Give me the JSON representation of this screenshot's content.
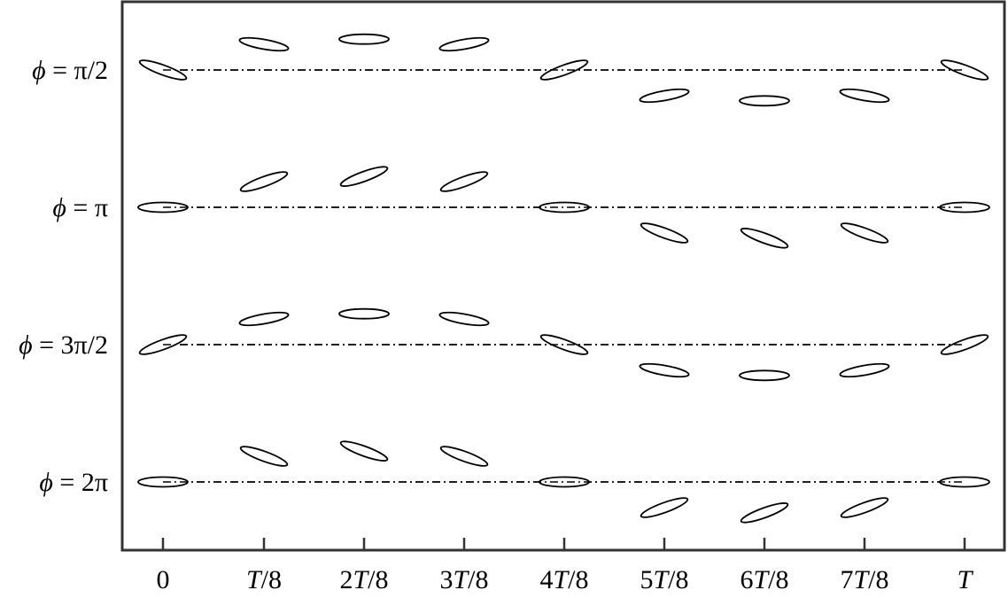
{
  "x_labels": [
    {
      "pre": "0",
      "ital": "",
      "post": ""
    },
    {
      "pre": "",
      "ital": "T",
      "post": "/8"
    },
    {
      "pre": "2",
      "ital": "T",
      "post": "/8"
    },
    {
      "pre": "3",
      "ital": "T",
      "post": "/8"
    },
    {
      "pre": "4",
      "ital": "T",
      "post": "/8"
    },
    {
      "pre": "5",
      "ital": "T",
      "post": "/8"
    },
    {
      "pre": "6",
      "ital": "T",
      "post": "/8"
    },
    {
      "pre": "7",
      "ital": "T",
      "post": "/8"
    },
    {
      "pre": "",
      "ital": "T",
      "post": ""
    }
  ],
  "rows": [
    {
      "symbol": "ϕ",
      "value": " = π/2",
      "offsets": [
        0,
        1.0,
        1.2,
        1.0,
        0,
        -1.0,
        -1.2,
        -1.0,
        0
      ],
      "angles": [
        -20,
        -10,
        0,
        10,
        20,
        10,
        0,
        -10,
        -20
      ]
    },
    {
      "symbol": "ϕ",
      "value": " = π",
      "offsets": [
        0,
        1.0,
        1.2,
        1.0,
        0,
        -1.0,
        -1.2,
        -1.0,
        0
      ],
      "angles": [
        0,
        20,
        20,
        20,
        0,
        -20,
        -20,
        -20,
        0
      ]
    },
    {
      "symbol": "ϕ",
      "value": " = 3π/2",
      "offsets": [
        0,
        1.0,
        1.2,
        1.0,
        0,
        -1.0,
        -1.2,
        -1.0,
        0
      ],
      "angles": [
        20,
        10,
        0,
        -10,
        -20,
        -10,
        0,
        10,
        20
      ]
    },
    {
      "symbol": "ϕ",
      "value": " = 2π",
      "offsets": [
        0,
        1.0,
        1.2,
        1.0,
        0,
        -1.0,
        -1.2,
        -1.0,
        0
      ],
      "angles": [
        0,
        -20,
        -20,
        -20,
        0,
        20,
        20,
        20,
        0
      ]
    }
  ]
}
